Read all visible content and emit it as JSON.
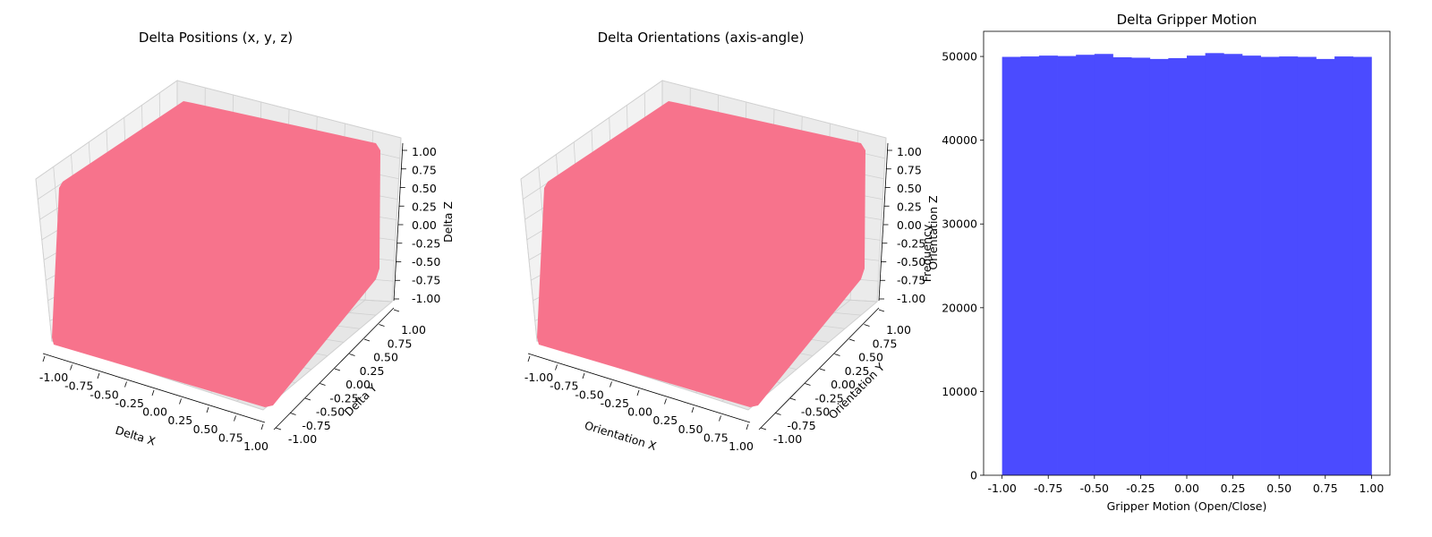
{
  "chart_data": [
    {
      "type": "scatter",
      "dimensions": 3,
      "title": "Delta Positions (x, y, z)",
      "xlabel": "Delta X",
      "ylabel": "Delta Y",
      "zlabel": "Delta Z",
      "xlim": [
        -1.0,
        1.0
      ],
      "ylim": [
        -1.0,
        1.0
      ],
      "zlim": [
        -1.0,
        1.0
      ],
      "ticks": [
        "-1.00",
        "-0.75",
        "-0.50",
        "-0.25",
        "0.00",
        "0.25",
        "0.50",
        "0.75",
        "1.00"
      ],
      "distribution": "uniform",
      "point_color": "#f7738c",
      "grid": true
    },
    {
      "type": "scatter",
      "dimensions": 3,
      "title": "Delta Orientations (axis-angle)",
      "xlabel": "Orientation X",
      "ylabel": "Orientation Y",
      "zlabel": "Orientation Z",
      "xlim": [
        -1.0,
        1.0
      ],
      "ylim": [
        -1.0,
        1.0
      ],
      "zlim": [
        -1.0,
        1.0
      ],
      "ticks": [
        "-1.00",
        "-0.75",
        "-0.50",
        "-0.25",
        "0.00",
        "0.25",
        "0.50",
        "0.75",
        "1.00"
      ],
      "distribution": "uniform",
      "point_color": "#f7738c",
      "grid": true
    },
    {
      "type": "bar",
      "subtype": "histogram",
      "title": "Delta Gripper Motion",
      "xlabel": "Gripper Motion (Open/Close)",
      "ylabel": "Frequency",
      "xlim": [
        -1.1,
        1.1
      ],
      "ylim": [
        0,
        53000
      ],
      "bin_edges": [
        -1.0,
        -0.9,
        -0.8,
        -0.7,
        -0.6,
        -0.5,
        -0.4,
        -0.3,
        -0.2,
        -0.1,
        0.0,
        0.1,
        0.2,
        0.3,
        0.4,
        0.5,
        0.6,
        0.7,
        0.8,
        0.9,
        1.0
      ],
      "values": [
        49950,
        50000,
        50100,
        50050,
        50200,
        50300,
        49900,
        49850,
        49700,
        49800,
        50100,
        50400,
        50300,
        50100,
        49950,
        50000,
        49950,
        49700,
        50000,
        49950
      ],
      "xticks": [
        "-1.00",
        "-0.75",
        "-0.50",
        "-0.25",
        "0.00",
        "0.25",
        "0.50",
        "0.75",
        "1.00"
      ],
      "yticks": [
        0,
        10000,
        20000,
        30000,
        40000,
        50000
      ],
      "bar_color": "#4b4bff",
      "grid": false
    }
  ]
}
